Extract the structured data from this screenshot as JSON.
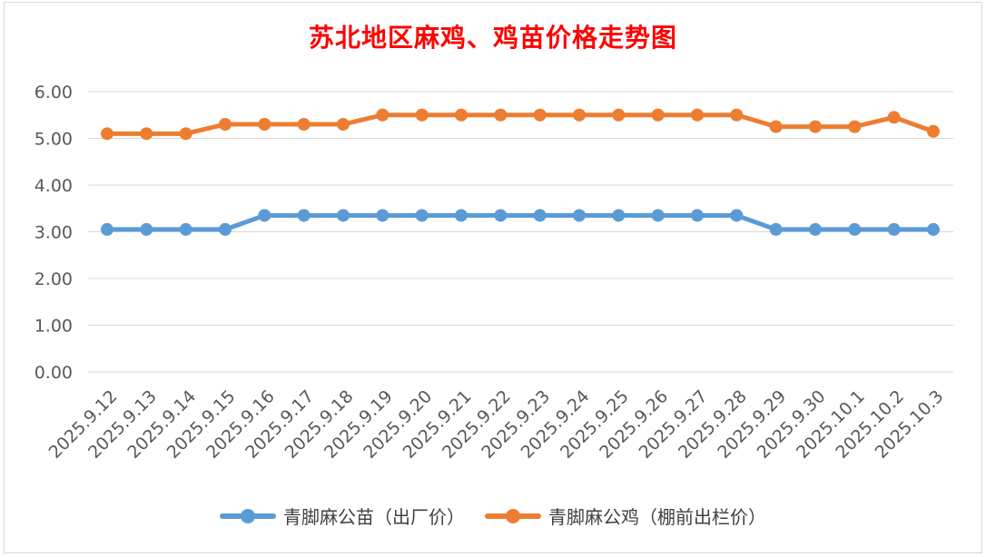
{
  "chart_data": {
    "type": "line",
    "title": "苏北地区麻鸡、鸡苗价格走势图",
    "categories": [
      "2025.9.12",
      "2025.9.13",
      "2025.9.14",
      "2025.9.15",
      "2025.9.16",
      "2025.9.17",
      "2025.9.18",
      "2025.9.19",
      "2025.9.20",
      "2025.9.21",
      "2025.9.22",
      "2025.9.23",
      "2025.9.24",
      "2025.9.25",
      "2025.9.26",
      "2025.9.27",
      "2025.9.28",
      "2025.9.29",
      "2025.9.30",
      "2025.10.1",
      "2025.10.2",
      "2025.10.3"
    ],
    "ylim": [
      0,
      6
    ],
    "yticks": [
      "0.00",
      "1.00",
      "2.00",
      "3.00",
      "4.00",
      "5.00",
      "6.00"
    ],
    "grid": true,
    "legend_position": "bottom",
    "series": [
      {
        "name": "青脚麻公苗（出厂价）",
        "color": "#5b9bd5",
        "values": [
          3.05,
          3.05,
          3.05,
          3.05,
          3.35,
          3.35,
          3.35,
          3.35,
          3.35,
          3.35,
          3.35,
          3.35,
          3.35,
          3.35,
          3.35,
          3.35,
          3.35,
          3.05,
          3.05,
          3.05,
          3.05,
          3.05
        ]
      },
      {
        "name": "青脚麻公鸡（棚前出栏价）",
        "color": "#ed7d31",
        "values": [
          5.1,
          5.1,
          5.1,
          5.3,
          5.3,
          5.3,
          5.3,
          5.5,
          5.5,
          5.5,
          5.5,
          5.5,
          5.5,
          5.5,
          5.5,
          5.5,
          5.5,
          5.25,
          5.25,
          5.25,
          5.45,
          5.15
        ]
      }
    ]
  }
}
